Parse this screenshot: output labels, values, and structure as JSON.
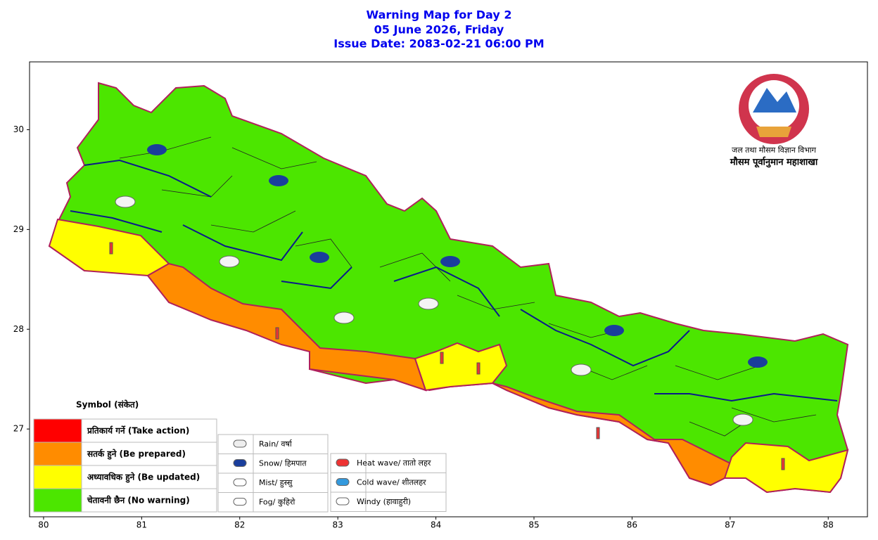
{
  "header": {
    "title": "Warning Map for Day 2",
    "date": "05 June 2026, Friday",
    "issue": "Issue Date: 2083-02-21 06:00 PM"
  },
  "agency": {
    "department": "जल तथा मौसम विज्ञान विभाग",
    "division": "मौसम पूर्वानुमान महाशाखा"
  },
  "map": {
    "xlim": [
      79.857,
      88.4
    ],
    "ylim": [
      26.12,
      30.68
    ],
    "xticks": [
      80,
      81,
      82,
      83,
      84,
      85,
      86,
      87,
      88
    ],
    "yticks": [
      27,
      28,
      29,
      30
    ]
  },
  "legend": {
    "title": "Symbol (संकेत)",
    "levels": [
      {
        "label": "प्रतिकार्य गर्ने (Take action)",
        "color": "#ff0000"
      },
      {
        "label": "सतर्क हुने (Be prepared)",
        "color": "#ff8c00"
      },
      {
        "label": "अध्यावधिक हुने (Be updated)",
        "color": "#ffff00"
      },
      {
        "label": "चेतावनी छैन (No warning)",
        "color": "#4ce600"
      }
    ],
    "symbols": [
      "Rain/ वर्षा",
      "Snow/ हिमपात",
      "Mist/ हुस्सु",
      "Fog/ कुहिरो",
      "Heat wave/ तातो लहर",
      "Cold wave/ शीतलहर",
      "Windy (हावाहुरी)"
    ]
  }
}
